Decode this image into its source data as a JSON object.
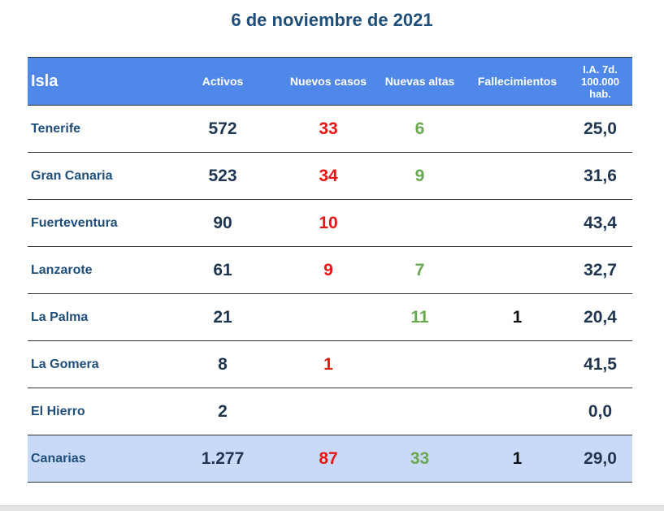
{
  "title": "6 de noviembre de 2021",
  "headers": {
    "isla": "Isla",
    "activos": "Activos",
    "nuevos_casos": "Nuevos casos",
    "nuevas_altas": "Nuevas altas",
    "fallecimientos": "Fallecimientos",
    "ia_line1": "I.A. 7d.",
    "ia_line2": "100.000",
    "ia_line3": "hab."
  },
  "rows": [
    {
      "isla": "Tenerife",
      "activos": "572",
      "nuevos": "33",
      "altas": "6",
      "fall": "",
      "ia": "25,0"
    },
    {
      "isla": "Gran Canaria",
      "activos": "523",
      "nuevos": "34",
      "altas": "9",
      "fall": "",
      "ia": "31,6"
    },
    {
      "isla": "Fuerteventura",
      "activos": "90",
      "nuevos": "10",
      "altas": "",
      "fall": "",
      "ia": "43,4"
    },
    {
      "isla": "Lanzarote",
      "activos": "61",
      "nuevos": "9",
      "altas": "7",
      "fall": "",
      "ia": "32,7"
    },
    {
      "isla": "La Palma",
      "activos": "21",
      "nuevos": "",
      "altas": "11",
      "fall": "1",
      "ia": "20,4"
    },
    {
      "isla": "La Gomera",
      "activos": "8",
      "nuevos": "1",
      "altas": "",
      "fall": "",
      "ia": "41,5"
    },
    {
      "isla": "El Hierro",
      "activos": "2",
      "nuevos": "",
      "altas": "",
      "fall": "",
      "ia": "0,0"
    }
  ],
  "total": {
    "isla": "Canarias",
    "activos": "1.277",
    "nuevos": "87",
    "altas": "33",
    "fall": "1",
    "ia": "29,0"
  },
  "colors": {
    "header_bg": "#4f88e8",
    "total_bg": "#c9daf8",
    "title": "#1f4e79",
    "nuevos": "#e81515",
    "altas": "#6aa84f"
  }
}
